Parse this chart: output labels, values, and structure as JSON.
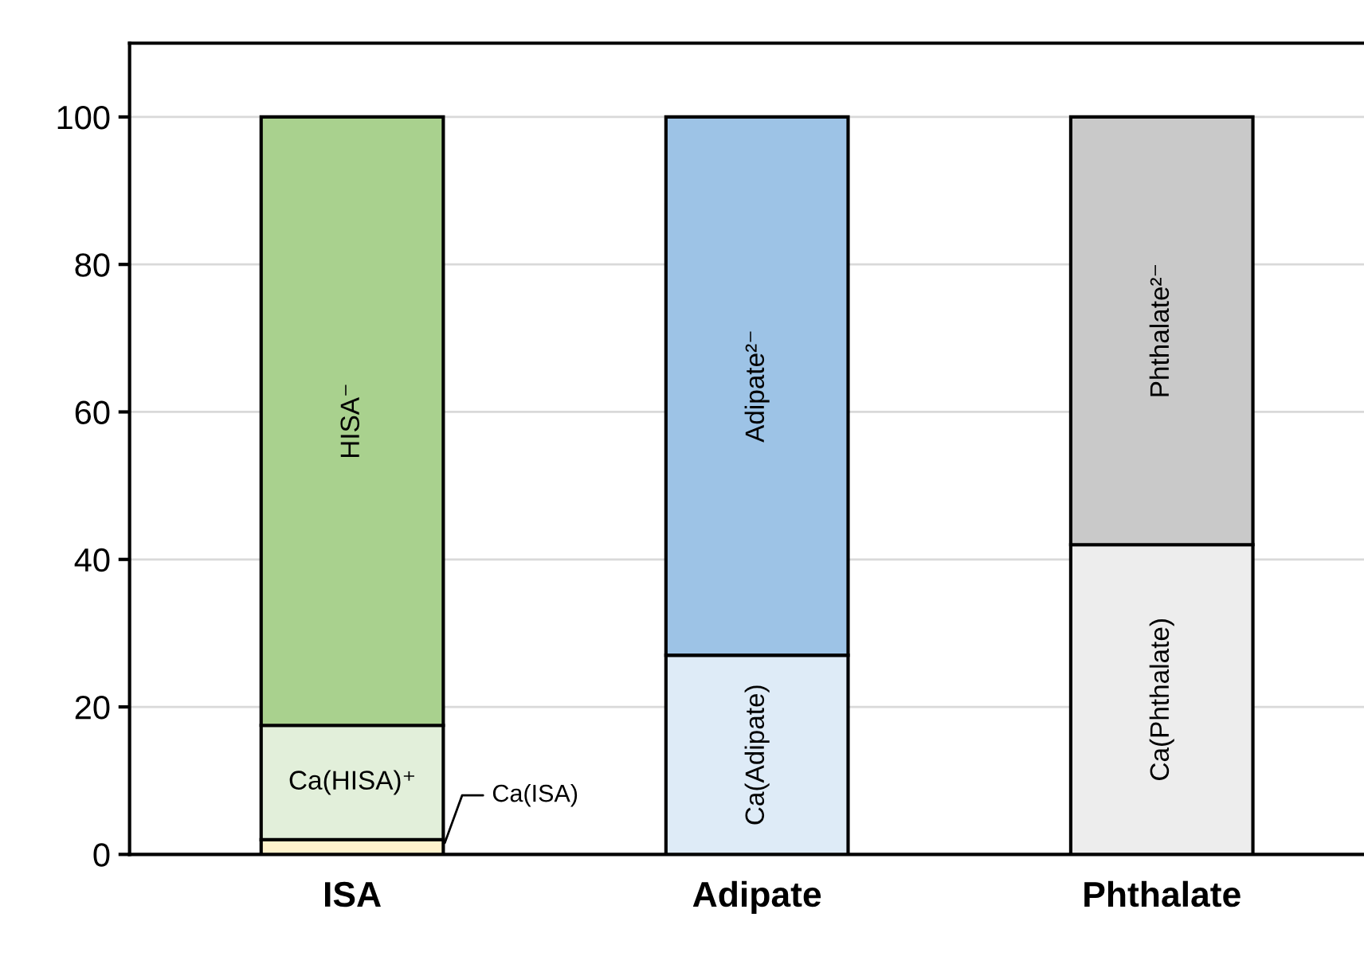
{
  "chart_data": {
    "type": "bar",
    "stacked": true,
    "categories": [
      "ISA",
      "Adipate",
      "Phthalate"
    ],
    "series": [
      {
        "name": "Ca(ISA)",
        "color": "#fff2cc",
        "values": [
          2,
          null,
          null
        ]
      },
      {
        "name": "Ca(HISA)⁺",
        "color": "#e2efda",
        "values": [
          15.5,
          null,
          null
        ]
      },
      {
        "name": "HISA⁻",
        "color": "#a9d18e",
        "values": [
          82.5,
          null,
          null
        ]
      },
      {
        "name": "Ca(Adipate)",
        "color": "#deebf7",
        "values": [
          null,
          27,
          null
        ]
      },
      {
        "name": "Adipate²⁻",
        "color": "#9dc3e6",
        "values": [
          null,
          73,
          null
        ]
      },
      {
        "name": "Ca(Phthalate)",
        "color": "#ededed",
        "values": [
          null,
          null,
          42
        ]
      },
      {
        "name": "Phthalate²⁻",
        "color": "#c9c9c9",
        "values": [
          null,
          null,
          58
        ]
      }
    ],
    "ylim": [
      0,
      110
    ],
    "yticks": [
      0,
      20,
      40,
      60,
      80,
      100
    ],
    "grid": "y"
  }
}
